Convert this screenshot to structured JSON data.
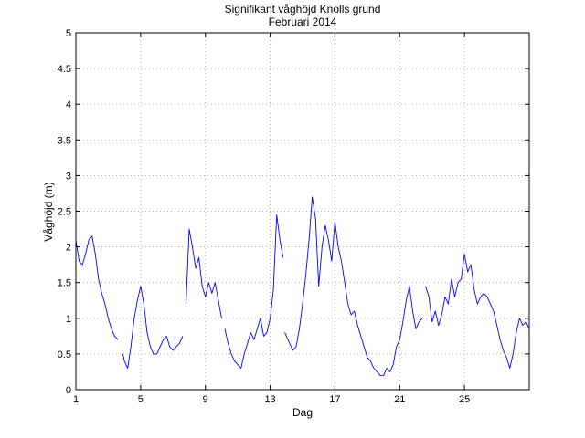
{
  "chart_data": {
    "type": "line",
    "title": "Signifikant våghöjd Knolls grund",
    "subtitle": "Februari 2014",
    "xlabel": "Dag",
    "ylabel": "Våghöjd (m)",
    "xlim": [
      1,
      29
    ],
    "ylim": [
      0,
      5
    ],
    "xticks": [
      1,
      5,
      9,
      13,
      17,
      21,
      25
    ],
    "xtick_labels": [
      "1",
      "5",
      "9",
      "13",
      "17",
      "21",
      "25"
    ],
    "yticks": [
      0,
      0.5,
      1,
      1.5,
      2,
      2.5,
      3,
      3.5,
      4,
      4.5,
      5
    ],
    "ytick_labels": [
      "0",
      "0.5",
      "1",
      "1.5",
      "2",
      "2.5",
      "3",
      "3.5",
      "4",
      "4.5",
      "5"
    ],
    "grid": true,
    "line_color": "#0000ff",
    "series": [
      {
        "x": [
          1.0,
          1.2,
          1.4,
          1.6,
          1.8,
          2.0,
          2.2,
          2.4,
          2.6,
          2.8,
          3.0,
          3.2,
          3.4,
          3.6
        ],
        "y": [
          2.1,
          1.8,
          1.75,
          1.9,
          2.1,
          2.15,
          1.9,
          1.55,
          1.35,
          1.2,
          1.0,
          0.85,
          0.75,
          0.7
        ]
      },
      {
        "x": [
          3.9,
          4.0,
          4.1,
          4.2,
          4.4,
          4.6,
          4.8,
          5.0,
          5.2,
          5.4,
          5.6,
          5.8,
          6.0,
          6.2,
          6.4,
          6.6,
          6.8,
          7.0,
          7.2,
          7.4,
          7.6
        ],
        "y": [
          0.5,
          0.4,
          0.35,
          0.3,
          0.6,
          1.0,
          1.25,
          1.45,
          1.2,
          0.8,
          0.6,
          0.5,
          0.5,
          0.6,
          0.7,
          0.75,
          0.6,
          0.55,
          0.6,
          0.65,
          0.75
        ]
      },
      {
        "x": [
          7.8,
          8.0,
          8.2,
          8.4,
          8.6,
          8.8,
          9.0,
          9.2,
          9.4,
          9.6,
          9.8,
          10.0
        ],
        "y": [
          1.2,
          2.25,
          2.0,
          1.7,
          1.85,
          1.45,
          1.3,
          1.5,
          1.35,
          1.5,
          1.25,
          1.0
        ]
      },
      {
        "x": [
          10.2,
          10.4,
          10.6,
          10.8,
          11.0,
          11.2,
          11.4,
          11.6,
          11.8,
          12.0,
          12.2,
          12.4,
          12.6,
          12.8,
          13.0,
          13.2,
          13.4,
          13.6,
          13.8
        ],
        "y": [
          0.85,
          0.65,
          0.5,
          0.4,
          0.35,
          0.3,
          0.5,
          0.65,
          0.8,
          0.7,
          0.85,
          1.0,
          0.75,
          0.8,
          1.0,
          1.4,
          2.45,
          2.1,
          1.85
        ]
      },
      {
        "x": [
          13.9,
          14.0,
          14.2,
          14.4,
          14.6,
          14.8,
          15.0,
          15.2,
          15.4,
          15.6,
          15.8,
          16.0,
          16.2,
          16.4,
          16.6,
          16.8,
          17.0,
          17.2,
          17.4,
          17.6,
          17.8,
          18.0,
          18.2,
          18.4,
          18.6,
          18.8,
          19.0,
          19.2,
          19.4,
          19.6,
          19.8,
          20.0,
          20.2,
          20.4,
          20.6,
          20.8,
          21.0,
          21.2,
          21.4,
          21.6,
          21.8,
          22.0,
          22.2,
          22.4
        ],
        "y": [
          0.8,
          0.75,
          0.65,
          0.55,
          0.6,
          0.85,
          1.2,
          1.6,
          2.1,
          2.7,
          2.4,
          1.45,
          2.0,
          2.3,
          2.1,
          1.8,
          2.35,
          2.0,
          1.8,
          1.5,
          1.2,
          1.05,
          1.1,
          0.9,
          0.75,
          0.6,
          0.45,
          0.4,
          0.3,
          0.25,
          0.2,
          0.2,
          0.3,
          0.25,
          0.35,
          0.6,
          0.7,
          0.95,
          1.25,
          1.45,
          1.1,
          0.85,
          0.95,
          1.0
        ]
      },
      {
        "x": [
          22.6,
          22.8,
          23.0,
          23.2,
          23.4,
          23.6,
          23.8,
          24.0,
          24.2,
          24.4,
          24.6,
          24.8,
          25.0,
          25.2,
          25.4,
          25.6,
          25.8,
          26.0,
          26.2,
          26.4,
          26.6,
          26.8,
          27.0,
          27.2,
          27.4,
          27.6,
          27.8,
          28.0,
          28.2,
          28.4,
          28.6,
          28.8,
          29.0
        ],
        "y": [
          1.45,
          1.3,
          0.95,
          1.1,
          0.9,
          1.05,
          1.3,
          1.2,
          1.55,
          1.3,
          1.5,
          1.55,
          1.9,
          1.65,
          1.75,
          1.4,
          1.2,
          1.3,
          1.35,
          1.3,
          1.2,
          1.1,
          0.9,
          0.7,
          0.55,
          0.45,
          0.3,
          0.5,
          0.8,
          1.0,
          0.9,
          0.95,
          0.85
        ]
      }
    ]
  }
}
